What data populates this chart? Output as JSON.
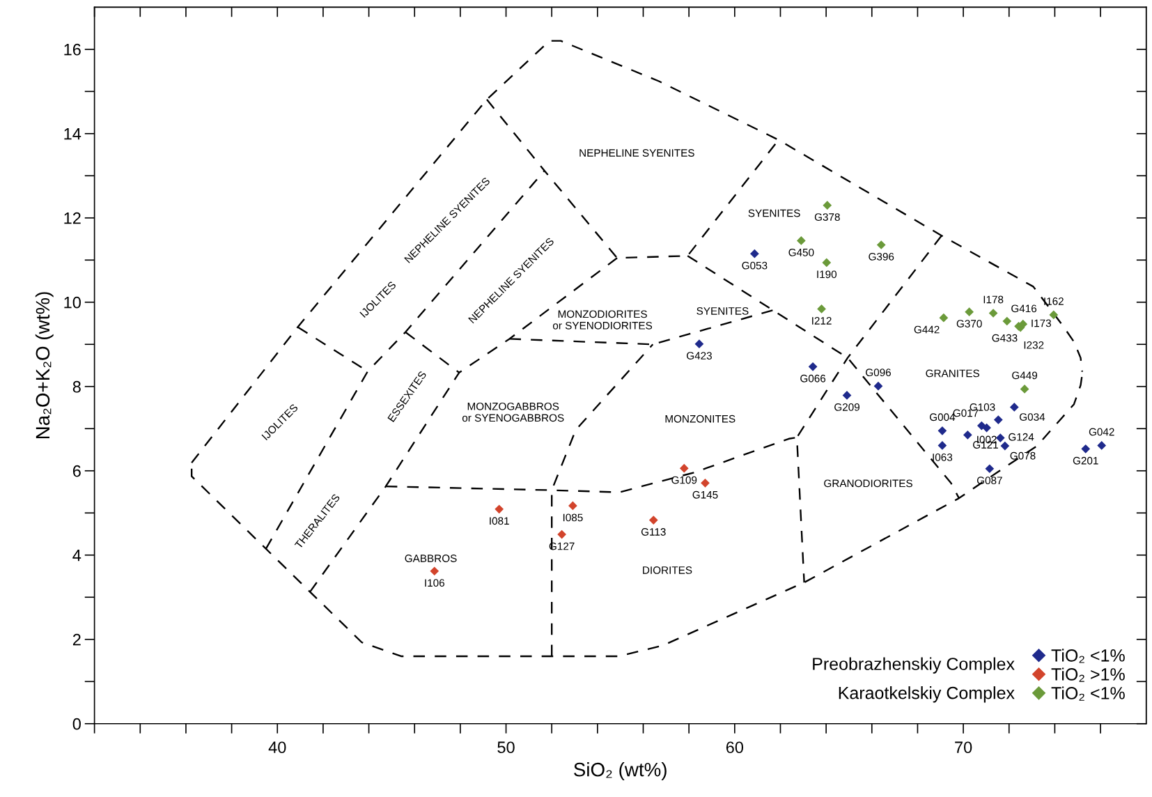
{
  "chart_data": {
    "type": "scatter",
    "xlabel": "SiO₂ (wt%)",
    "ylabel": "Na₂O+K₂O (wt%)",
    "marker": "diamond",
    "legend": "bottom right",
    "grid": false,
    "xlim": [
      32,
      78
    ],
    "ylim": [
      0,
      17
    ],
    "xticks": [
      {
        "value": 32,
        "label": null
      },
      {
        "value": 34,
        "label": null
      },
      {
        "value": 36,
        "label": null
      },
      {
        "value": 38,
        "label": null
      },
      40,
      {
        "value": 42,
        "label": null
      },
      {
        "value": 44,
        "label": null
      },
      {
        "value": 46,
        "label": null
      },
      {
        "value": 48,
        "label": null
      },
      50,
      {
        "value": 52,
        "label": null
      },
      {
        "value": 54,
        "label": null
      },
      {
        "value": 56,
        "label": null
      },
      {
        "value": 58,
        "label": null
      },
      60,
      {
        "value": 62,
        "label": null
      },
      {
        "value": 64,
        "label": null
      },
      {
        "value": 66,
        "label": null
      },
      {
        "value": 68,
        "label": null
      },
      70,
      {
        "value": 72,
        "label": null
      },
      {
        "value": 74,
        "label": null
      },
      {
        "value": 76,
        "label": null
      }
    ],
    "yticks": [
      0,
      {
        "value": 1,
        "label": null
      },
      2,
      {
        "value": 3,
        "label": null
      },
      4,
      {
        "value": 5,
        "label": null
      },
      6,
      {
        "value": 7,
        "label": null
      },
      8,
      {
        "value": 9,
        "label": null
      },
      10,
      {
        "value": 11,
        "label": null
      },
      12,
      {
        "value": 13,
        "label": null
      },
      14,
      {
        "value": 15,
        "label": null
      },
      16
    ],
    "series": [
      {
        "name": "TiO₂ <1%",
        "color": "#1f2a8c",
        "x": [
          60.87,
          58.45,
          63.42,
          64.91,
          66.28,
          69.08,
          69.08,
          70.19,
          70.8,
          71.02,
          71.53,
          71.62,
          71.82,
          72.23,
          71.15,
          75.35,
          76.05
        ],
        "values": [
          11.15,
          9.01,
          8.47,
          7.79,
          8.01,
          6.95,
          6.6,
          6.85,
          7.07,
          7.02,
          7.21,
          6.78,
          6.59,
          7.51,
          6.05,
          6.52,
          6.6
        ],
        "value_labels": [
          "G053",
          "G423",
          "G066",
          "G209",
          "G096",
          "G004",
          "I063",
          "G121",
          "G017",
          "I002",
          "G103",
          "G124",
          "G078",
          "G034",
          "G087",
          "G201",
          "G042"
        ]
      },
      {
        "name": "TiO₂ >1%",
        "color": "#d2442c",
        "x": [
          46.87,
          49.7,
          52.92,
          52.44,
          56.45,
          57.79,
          58.71
        ],
        "values": [
          3.62,
          5.09,
          5.17,
          4.49,
          4.83,
          6.06,
          5.71
        ],
        "value_labels": [
          "I106",
          "I081",
          "I085",
          "G127",
          "G113",
          "G109",
          "G145"
        ]
      },
      {
        "name": "TiO₂ <1%",
        "color": "#6b9a3a",
        "x": [
          64.05,
          62.91,
          64.02,
          66.41,
          63.8,
          69.14,
          70.26,
          71.31,
          71.91,
          72.42,
          72.5,
          72.61,
          73.95,
          72.68
        ],
        "values": [
          12.3,
          11.46,
          10.94,
          11.36,
          9.84,
          9.63,
          9.77,
          9.74,
          9.55,
          9.43,
          9.4,
          9.48,
          9.7,
          7.94
        ],
        "value_labels": [
          "G378",
          "G450",
          "I190",
          "G396",
          "I212",
          "G442",
          "G370",
          "I178",
          "G416",
          "G433",
          "I232",
          "I173",
          "I162",
          "G449"
        ]
      },
      {
        "type": "line",
        "color": "#000000",
        "line_style": "dashed",
        "marker": "none",
        "x": [
          36.25,
          40.89,
          49.16,
          51.9,
          52.4,
          56.7,
          61.92,
          69.05,
          73.06,
          74.33,
          74.84,
          75.13,
          75.2
        ],
        "values": [
          6.19,
          9.41,
          14.81,
          16.2,
          16.2,
          15.24,
          13.85,
          11.58,
          10.37,
          9.46,
          9.06,
          8.68,
          8.35
        ]
      },
      {
        "type": "line",
        "color": "#000000",
        "line_style": "dashed",
        "marker": "none",
        "x": [
          36.25,
          36.25,
          43.69,
          45.41,
          54.92,
          56.83,
          63.04,
          69.81,
          71.53,
          73.22,
          74.84,
          75.13,
          75.19
        ],
        "values": [
          6.05,
          5.87,
          1.93,
          1.6,
          1.6,
          1.85,
          3.35,
          5.35,
          5.98,
          6.59,
          7.58,
          8.03,
          8.25
        ]
      },
      {
        "type": "line",
        "color": "#000000",
        "line_style": "dashed",
        "marker": "none",
        "x": [
          40.89,
          43.95
        ],
        "values": [
          9.41,
          8.36
        ]
      },
      {
        "type": "line",
        "color": "#000000",
        "line_style": "dashed",
        "marker": "none",
        "x": [
          39.5,
          43.95,
          45.6,
          51.68
        ],
        "values": [
          4.15,
          8.36,
          9.29,
          13.12
        ]
      },
      {
        "type": "line",
        "color": "#000000",
        "line_style": "dashed",
        "marker": "none",
        "x": [
          45.6,
          47.95
        ],
        "values": [
          9.29,
          8.33
        ]
      },
      {
        "type": "line",
        "color": "#000000",
        "line_style": "dashed",
        "marker": "none",
        "x": [
          41.43,
          44.74,
          47.95,
          50.15,
          54.86
        ],
        "values": [
          3.13,
          5.63,
          8.33,
          9.13,
          11.05
        ]
      },
      {
        "type": "line",
        "color": "#000000",
        "line_style": "dashed",
        "marker": "none",
        "x": [
          49.16,
          51.68,
          54.86,
          57.94,
          61.92
        ],
        "values": [
          14.81,
          13.12,
          11.05,
          11.1,
          13.85
        ]
      },
      {
        "type": "line",
        "color": "#000000",
        "line_style": "dashed",
        "marker": "none",
        "x": [
          50.15,
          56.42,
          61.67
        ],
        "values": [
          9.13,
          9.0,
          9.81
        ]
      },
      {
        "type": "line",
        "color": "#000000",
        "line_style": "dashed",
        "marker": "none",
        "x": [
          57.94,
          61.67,
          64.94,
          69.46,
          69.81
        ],
        "values": [
          11.1,
          9.81,
          8.68,
          5.71,
          5.35
        ]
      },
      {
        "type": "line",
        "color": "#000000",
        "line_style": "dashed",
        "marker": "none",
        "x": [
          69.05,
          64.94,
          62.72,
          63.04
        ],
        "values": [
          11.58,
          8.68,
          6.79,
          3.35
        ]
      },
      {
        "type": "line",
        "color": "#000000",
        "line_style": "dashed",
        "marker": "none",
        "x": [
          44.74,
          52.0,
          54.95,
          58.23,
          62.37,
          62.72
        ],
        "values": [
          5.63,
          5.54,
          5.49,
          5.96,
          6.76,
          6.79
        ]
      },
      {
        "type": "line",
        "color": "#000000",
        "line_style": "dashed",
        "marker": "none",
        "x": [
          52.0,
          52.0,
          53.05,
          56.42
        ],
        "values": [
          1.6,
          5.54,
          6.97,
          9.0
        ]
      }
    ],
    "annotations": [
      "Preobrazhenskiy Complex",
      "Karaotkelskiy Complex",
      "NEPHELINE SYENITES",
      "NEPHELINE SYENITES",
      "NEPHELINE SYENITES",
      "IJOLITES",
      "IJOLITES",
      "ESSEXITES",
      "THERALITES",
      "MONZODIORITES\nor SYENODIORITES",
      "SYENITES",
      "SYENITES",
      "MONZOGABBROS\nor SYENOGABBROS",
      "MONZONITES",
      "GRANITES",
      "GRANODIORITES",
      "GABBROS",
      "DIORITES"
    ]
  }
}
